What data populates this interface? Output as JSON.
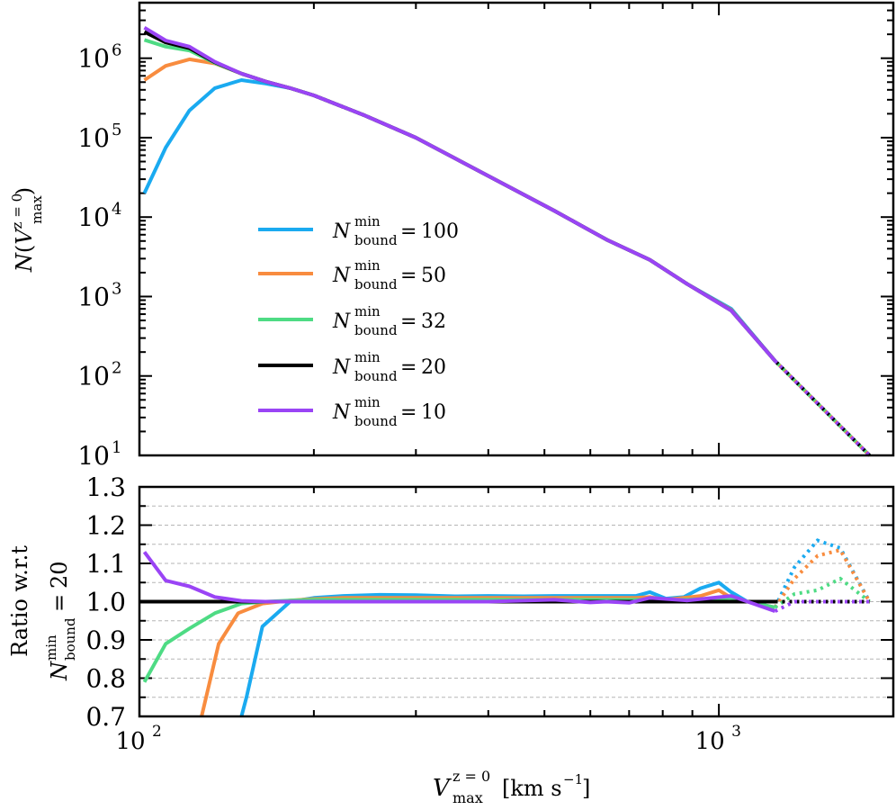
{
  "chart_data": [
    {
      "type": "line",
      "panel": "top",
      "x_scale": "log",
      "y_scale": "log",
      "xlim": [
        100,
        2000
      ],
      "ylim": [
        10,
        5000000
      ],
      "ylabel": "N(V^{z=0}_{max})",
      "yticks": [
        {
          "value": 10,
          "base": "10",
          "exp": "1"
        },
        {
          "value": 100,
          "base": "10",
          "exp": "2"
        },
        {
          "value": 1000,
          "base": "10",
          "exp": "3"
        },
        {
          "value": 10000,
          "base": "10",
          "exp": "4"
        },
        {
          "value": 100000,
          "base": "10",
          "exp": "5"
        },
        {
          "value": 1000000,
          "base": "10",
          "exp": "6"
        }
      ],
      "legend_position": "lower-left",
      "series": [
        {
          "name": "N_bound^min = 100",
          "legend_value": "100",
          "color": "#1aaaf0",
          "x": [
            102,
            111,
            122,
            135,
            150,
            165,
            182,
            200,
            245,
            300,
            400,
            520,
            640,
            760,
            880,
            1050,
            1250
          ],
          "y": [
            20000,
            75000,
            220000,
            420000,
            530000,
            480000,
            420000,
            340000,
            190000,
            100000,
            33000,
            12000,
            5200,
            2900,
            1450,
            700,
            155
          ]
        },
        {
          "name": "N_bound^min = 50",
          "legend_value": "50",
          "color": "#f88c3f",
          "x": [
            102,
            111,
            122,
            135,
            150,
            165,
            182,
            200,
            245,
            300,
            400,
            520,
            640,
            760,
            880,
            1050,
            1250
          ],
          "y": [
            530000,
            800000,
            970000,
            860000,
            640000,
            510000,
            420000,
            340000,
            190000,
            100000,
            33000,
            12000,
            5200,
            2900,
            1450,
            680,
            155
          ]
        },
        {
          "name": "N_bound^min = 32",
          "legend_value": "32",
          "color": "#4edb84",
          "x": [
            102,
            111,
            122,
            135,
            150,
            165,
            182,
            200,
            245,
            300,
            400,
            520,
            640,
            760,
            880,
            1050,
            1250
          ],
          "y": [
            1700000,
            1400000,
            1250000,
            870000,
            640000,
            510000,
            420000,
            340000,
            190000,
            100000,
            33000,
            12000,
            5200,
            2900,
            1450,
            670,
            155
          ]
        },
        {
          "name": "N_bound^min = 20",
          "legend_value": "20",
          "color": "#000000",
          "x": [
            102,
            111,
            122,
            135,
            150,
            165,
            182,
            200,
            245,
            300,
            400,
            520,
            640,
            760,
            880,
            1050,
            1250
          ],
          "y": [
            2150000,
            1580000,
            1340000,
            890000,
            640000,
            510000,
            420000,
            340000,
            190000,
            100000,
            33000,
            12000,
            5200,
            2900,
            1450,
            665,
            155
          ]
        },
        {
          "name": "N_bound^min = 10",
          "legend_value": "10",
          "color": "#9a44f5",
          "x": [
            102,
            111,
            122,
            135,
            150,
            165,
            182,
            200,
            245,
            300,
            400,
            520,
            640,
            760,
            880,
            1050,
            1250
          ],
          "y": [
            2430000,
            1670000,
            1400000,
            900000,
            640000,
            510000,
            420000,
            340000,
            190000,
            100000,
            33000,
            12000,
            5200,
            2900,
            1450,
            665,
            155
          ]
        }
      ],
      "dotted_extension": {
        "x": [
          1250,
          1820
        ],
        "y": [
          155,
          10
        ]
      }
    },
    {
      "type": "line",
      "panel": "bottom",
      "x_scale": "log",
      "y_scale": "linear",
      "xlim": [
        100,
        2000
      ],
      "ylim": [
        0.7,
        1.3
      ],
      "xlabel": "V^{z=0}_{max} [km s^{-1}]",
      "ylabel_line1": "Ratio w.r.t",
      "ylabel_line2": "N_bound^min = 20",
      "ylabel_value": "20",
      "yticks": [
        "0.7",
        "0.8",
        "0.9",
        "1.0",
        "1.1",
        "1.2",
        "1.3"
      ],
      "xticks": [
        {
          "value": 100,
          "base": "10",
          "exp": "2"
        },
        {
          "value": 1000,
          "base": "10",
          "exp": "3"
        }
      ],
      "grid": "horizontal dashed every 0.05",
      "series": [
        {
          "name": "N_bound^min = 100",
          "color": "#1aaaf0",
          "x": [
            150,
            153,
            163,
            182,
            200,
            225,
            260,
            300,
            350,
            400,
            460,
            520,
            600,
            660,
            720,
            760,
            810,
            870,
            930,
            1000,
            1050,
            1120,
            1250
          ],
          "y": [
            0.7,
            0.75,
            0.935,
            1.0,
            1.01,
            1.015,
            1.018,
            1.017,
            1.014,
            1.015,
            1.014,
            1.015,
            1.015,
            1.015,
            1.015,
            1.025,
            1.008,
            1.012,
            1.035,
            1.05,
            1.025,
            1.0,
            0.985
          ],
          "dotted": {
            "x": [
              1250,
              1350,
              1480,
              1620,
              1820
            ],
            "y": [
              0.985,
              1.09,
              1.16,
              1.14,
              1.0
            ]
          }
        },
        {
          "name": "N_bound^min = 50",
          "color": "#f88c3f",
          "x": [
            128,
            137,
            148,
            163,
            182,
            200,
            225,
            260,
            300,
            350,
            400,
            460,
            520,
            600,
            660,
            720,
            760,
            810,
            870,
            930,
            1000,
            1050,
            1120,
            1250
          ],
          "y": [
            0.7,
            0.89,
            0.97,
            0.995,
            1.003,
            1.007,
            1.01,
            1.01,
            1.01,
            1.01,
            1.01,
            1.01,
            1.01,
            1.01,
            1.01,
            1.01,
            1.012,
            1.005,
            1.01,
            1.015,
            1.03,
            1.01,
            1.0,
            0.985
          ],
          "dotted": {
            "x": [
              1250,
              1350,
              1480,
              1620,
              1820
            ],
            "y": [
              0.985,
              1.06,
              1.12,
              1.135,
              1.0
            ]
          }
        },
        {
          "name": "N_bound^min = 32",
          "color": "#4edb84",
          "x": [
            102,
            111,
            122,
            135,
            150,
            165,
            182,
            200,
            245,
            300,
            400,
            520,
            640,
            760,
            880,
            1050,
            1250
          ],
          "y": [
            0.79,
            0.89,
            0.93,
            0.97,
            0.995,
            1.0,
            1.003,
            1.005,
            1.005,
            1.005,
            1.005,
            1.005,
            1.005,
            1.005,
            1.005,
            1.01,
            0.985
          ],
          "dotted": {
            "x": [
              1250,
              1350,
              1480,
              1620,
              1820
            ],
            "y": [
              0.985,
              1.02,
              1.03,
              1.06,
              1.0
            ]
          }
        },
        {
          "name": "N_bound^min = 20",
          "color": "#000000",
          "x": [
            100,
            1250
          ],
          "y": [
            1.0,
            1.0
          ],
          "dotted": {
            "x": [
              1250,
              1820
            ],
            "y": [
              1.0,
              1.0
            ]
          }
        },
        {
          "name": "N_bound^min = 10",
          "color": "#9a44f5",
          "x": [
            102,
            111,
            122,
            135,
            150,
            165,
            182,
            200,
            245,
            300,
            400,
            520,
            600,
            640,
            700,
            760,
            880,
            1050,
            1250
          ],
          "y": [
            1.13,
            1.055,
            1.04,
            1.012,
            1.002,
            1.0,
            1.0,
            1.0,
            1.0,
            1.0,
            1.0,
            1.005,
            0.998,
            1.0,
            0.997,
            1.01,
            1.003,
            1.015,
            0.975
          ],
          "dotted": {
            "x": [
              1250,
              1350,
              1480,
              1620,
              1820
            ],
            "y": [
              0.975,
              1.0,
              1.0,
              1.0,
              1.0
            ]
          }
        }
      ]
    }
  ]
}
